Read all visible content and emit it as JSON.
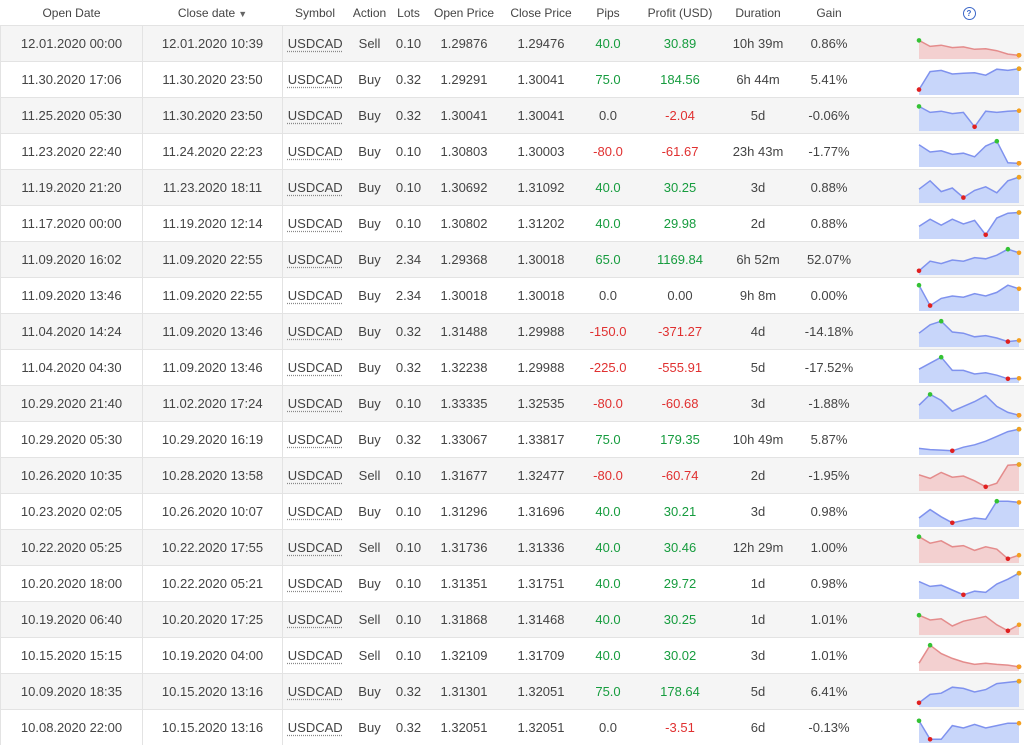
{
  "headers": {
    "open_date": "Open Date",
    "close_date": "Close date",
    "close_sort_icon": "triangle-down",
    "symbol": "Symbol",
    "action": "Action",
    "lots": "Lots",
    "open_price": "Open Price",
    "close_price": "Close Price",
    "pips": "Pips",
    "profit": "Profit (USD)",
    "duration": "Duration",
    "gain": "Gain",
    "help": "?"
  },
  "colors": {
    "positive": "#169c3e",
    "negative": "#e03030",
    "buy_fill": "#c8d6fa",
    "buy_line": "#7f92ee",
    "sell_fill": "#f3d0d0",
    "sell_line": "#e48c8c",
    "start_dot": "#34c234",
    "min_dot": "#e02020",
    "end_dot": "#f4a020"
  },
  "trades": [
    {
      "open": "12.01.2020 00:00",
      "close": "12.01.2020 10:39",
      "symbol": "USDCAD",
      "action": "Sell",
      "lots": "0.10",
      "open_price": "1.29876",
      "close_price": "1.29476",
      "pips": "40.0",
      "profit": "30.89",
      "duration": "10h 39m",
      "gain": "0.86%",
      "spark": [
        0.35,
        0.6,
        0.55,
        0.65,
        0.62,
        0.72,
        0.7,
        0.78,
        0.92,
        0.97
      ]
    },
    {
      "open": "11.30.2020 17:06",
      "close": "11.30.2020 23:50",
      "symbol": "USDCAD",
      "action": "Buy",
      "lots": "0.32",
      "open_price": "1.29291",
      "close_price": "1.30041",
      "pips": "75.0",
      "profit": "184.56",
      "duration": "6h 44m",
      "gain": "5.41%",
      "spark": [
        0.9,
        0.15,
        0.1,
        0.25,
        0.22,
        0.2,
        0.3,
        0.05,
        0.1,
        0.03
      ]
    },
    {
      "open": "11.25.2020 05:30",
      "close": "11.30.2020 23:50",
      "symbol": "USDCAD",
      "action": "Buy",
      "lots": "0.32",
      "open_price": "1.30041",
      "close_price": "1.30041",
      "pips": "0.0",
      "profit": "-2.04",
      "duration": "5d",
      "gain": "-0.06%",
      "spark": [
        0.1,
        0.35,
        0.3,
        0.4,
        0.35,
        0.95,
        0.3,
        0.35,
        0.3,
        0.28
      ]
    },
    {
      "open": "11.23.2020 22:40",
      "close": "11.24.2020 22:23",
      "symbol": "USDCAD",
      "action": "Buy",
      "lots": "0.10",
      "open_price": "1.30803",
      "close_price": "1.30003",
      "pips": "-80.0",
      "profit": "-61.67",
      "duration": "23h 43m",
      "gain": "-1.77%",
      "spark": [
        0.2,
        0.5,
        0.45,
        0.6,
        0.55,
        0.7,
        0.25,
        0.05,
        0.95,
        0.97
      ]
    },
    {
      "open": "11.19.2020 21:20",
      "close": "11.23.2020 18:11",
      "symbol": "USDCAD",
      "action": "Buy",
      "lots": "0.10",
      "open_price": "1.30692",
      "close_price": "1.31092",
      "pips": "40.0",
      "profit": "30.25",
      "duration": "3d",
      "gain": "0.88%",
      "spark": [
        0.55,
        0.2,
        0.65,
        0.5,
        0.9,
        0.6,
        0.45,
        0.7,
        0.2,
        0.05
      ]
    },
    {
      "open": "11.17.2020 00:00",
      "close": "11.19.2020 12:14",
      "symbol": "USDCAD",
      "action": "Buy",
      "lots": "0.10",
      "open_price": "1.30802",
      "close_price": "1.31202",
      "pips": "40.0",
      "profit": "29.98",
      "duration": "2d",
      "gain": "0.88%",
      "spark": [
        0.6,
        0.3,
        0.55,
        0.3,
        0.5,
        0.35,
        0.95,
        0.25,
        0.05,
        0.02
      ]
    },
    {
      "open": "11.09.2020 16:02",
      "close": "11.09.2020 22:55",
      "symbol": "USDCAD",
      "action": "Buy",
      "lots": "2.34",
      "open_price": "1.29368",
      "close_price": "1.30018",
      "pips": "65.0",
      "profit": "1169.84",
      "duration": "6h 52m",
      "gain": "52.07%",
      "spark": [
        0.95,
        0.55,
        0.65,
        0.5,
        0.55,
        0.4,
        0.45,
        0.3,
        0.05,
        0.2
      ]
    },
    {
      "open": "11.09.2020 13:46",
      "close": "11.09.2020 22:55",
      "symbol": "USDCAD",
      "action": "Buy",
      "lots": "2.34",
      "open_price": "1.30018",
      "close_price": "1.30018",
      "pips": "0.0",
      "profit": "0.00",
      "duration": "9h 8m",
      "gain": "0.00%",
      "spark": [
        0.05,
        0.9,
        0.6,
        0.5,
        0.55,
        0.4,
        0.5,
        0.35,
        0.05,
        0.2
      ]
    },
    {
      "open": "11.04.2020 14:24",
      "close": "11.09.2020 13:46",
      "symbol": "USDCAD",
      "action": "Buy",
      "lots": "0.32",
      "open_price": "1.31488",
      "close_price": "1.29988",
      "pips": "-150.0",
      "profit": "-371.27",
      "duration": "4d",
      "gain": "-14.18%",
      "spark": [
        0.55,
        0.2,
        0.05,
        0.5,
        0.55,
        0.7,
        0.65,
        0.75,
        0.9,
        0.85
      ]
    },
    {
      "open": "11.04.2020 04:30",
      "close": "11.09.2020 13:46",
      "symbol": "USDCAD",
      "action": "Buy",
      "lots": "0.32",
      "open_price": "1.32238",
      "close_price": "1.29988",
      "pips": "-225.0",
      "profit": "-555.91",
      "duration": "5d",
      "gain": "-17.52%",
      "spark": [
        0.55,
        0.3,
        0.05,
        0.6,
        0.6,
        0.75,
        0.7,
        0.8,
        0.95,
        0.93
      ]
    },
    {
      "open": "10.29.2020 21:40",
      "close": "11.02.2020 17:24",
      "symbol": "USDCAD",
      "action": "Buy",
      "lots": "0.10",
      "open_price": "1.33335",
      "close_price": "1.32535",
      "pips": "-80.0",
      "profit": "-60.68",
      "duration": "3d",
      "gain": "-1.88%",
      "spark": [
        0.55,
        0.1,
        0.35,
        0.8,
        0.6,
        0.4,
        0.15,
        0.6,
        0.85,
        0.97
      ]
    },
    {
      "open": "10.29.2020 05:30",
      "close": "10.29.2020 16:19",
      "symbol": "USDCAD",
      "action": "Buy",
      "lots": "0.32",
      "open_price": "1.33067",
      "close_price": "1.33817",
      "pips": "75.0",
      "profit": "179.35",
      "duration": "10h 49m",
      "gain": "5.87%",
      "spark": [
        0.85,
        0.9,
        0.92,
        0.95,
        0.8,
        0.7,
        0.55,
        0.35,
        0.15,
        0.05
      ]
    },
    {
      "open": "10.26.2020 10:35",
      "close": "10.28.2020 13:58",
      "symbol": "USDCAD",
      "action": "Sell",
      "lots": "0.10",
      "open_price": "1.31677",
      "close_price": "1.32477",
      "pips": "-80.0",
      "profit": "-60.74",
      "duration": "2d",
      "gain": "-1.95%",
      "spark": [
        0.45,
        0.6,
        0.35,
        0.55,
        0.5,
        0.7,
        0.95,
        0.8,
        0.05,
        0.02
      ]
    },
    {
      "open": "10.23.2020 02:05",
      "close": "10.26.2020 10:07",
      "symbol": "USDCAD",
      "action": "Buy",
      "lots": "0.10",
      "open_price": "1.31296",
      "close_price": "1.31696",
      "pips": "40.0",
      "profit": "30.21",
      "duration": "3d",
      "gain": "0.98%",
      "spark": [
        0.75,
        0.4,
        0.7,
        0.95,
        0.85,
        0.75,
        0.8,
        0.05,
        0.05,
        0.1
      ]
    },
    {
      "open": "10.22.2020 05:25",
      "close": "10.22.2020 17:55",
      "symbol": "USDCAD",
      "action": "Sell",
      "lots": "0.10",
      "open_price": "1.31736",
      "close_price": "1.31336",
      "pips": "40.0",
      "profit": "30.46",
      "duration": "12h 29m",
      "gain": "1.00%",
      "spark": [
        0.03,
        0.3,
        0.2,
        0.45,
        0.4,
        0.6,
        0.45,
        0.55,
        0.95,
        0.8
      ]
    },
    {
      "open": "10.20.2020 18:00",
      "close": "10.22.2020 05:21",
      "symbol": "USDCAD",
      "action": "Buy",
      "lots": "0.10",
      "open_price": "1.31351",
      "close_price": "1.31751",
      "pips": "40.0",
      "profit": "29.72",
      "duration": "1d",
      "gain": "0.98%",
      "spark": [
        0.4,
        0.6,
        0.55,
        0.75,
        0.95,
        0.8,
        0.85,
        0.5,
        0.3,
        0.05
      ]
    },
    {
      "open": "10.19.2020 06:40",
      "close": "10.20.2020 17:25",
      "symbol": "USDCAD",
      "action": "Sell",
      "lots": "0.10",
      "open_price": "1.31868",
      "close_price": "1.31468",
      "pips": "40.0",
      "profit": "30.25",
      "duration": "1d",
      "gain": "1.01%",
      "spark": [
        0.3,
        0.5,
        0.45,
        0.75,
        0.55,
        0.45,
        0.35,
        0.7,
        0.95,
        0.7
      ]
    },
    {
      "open": "10.15.2020 15:15",
      "close": "10.19.2020 04:00",
      "symbol": "USDCAD",
      "action": "Sell",
      "lots": "0.10",
      "open_price": "1.32109",
      "close_price": "1.31709",
      "pips": "40.0",
      "profit": "30.02",
      "duration": "3d",
      "gain": "1.01%",
      "spark": [
        0.8,
        0.05,
        0.4,
        0.6,
        0.75,
        0.85,
        0.8,
        0.85,
        0.88,
        0.95
      ]
    },
    {
      "open": "10.09.2020 18:35",
      "close": "10.15.2020 13:16",
      "symbol": "USDCAD",
      "action": "Buy",
      "lots": "0.32",
      "open_price": "1.31301",
      "close_price": "1.32051",
      "pips": "75.0",
      "profit": "178.64",
      "duration": "5d",
      "gain": "6.41%",
      "spark": [
        0.95,
        0.6,
        0.55,
        0.3,
        0.35,
        0.5,
        0.4,
        0.15,
        0.1,
        0.05
      ]
    },
    {
      "open": "10.08.2020 22:00",
      "close": "10.15.2020 13:16",
      "symbol": "USDCAD",
      "action": "Buy",
      "lots": "0.32",
      "open_price": "1.32051",
      "close_price": "1.32051",
      "pips": "0.0",
      "profit": "-3.51",
      "duration": "6d",
      "gain": "-0.13%",
      "spark": [
        0.2,
        0.97,
        0.97,
        0.4,
        0.5,
        0.35,
        0.5,
        0.4,
        0.3,
        0.3
      ]
    }
  ]
}
